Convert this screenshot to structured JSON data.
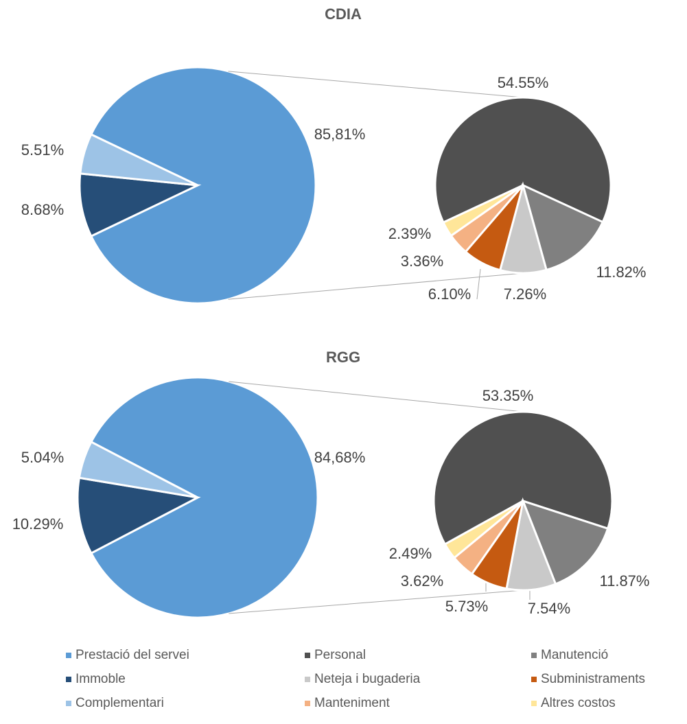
{
  "chart_data": {
    "type": "pie",
    "categories": [
      "Prestació del servei",
      "Immoble",
      "Complementari"
    ],
    "colors": [
      "#5b9bd5",
      "#264e78",
      "#9dc3e6"
    ],
    "sub_categories": [
      "Personal",
      "Manutenció",
      "Neteja i bugaderia",
      "Subministraments",
      "Manteniment",
      "Altres costos"
    ],
    "sub_colors": [
      "#505050",
      "#808080",
      "#c9c9c9",
      "#c55a11",
      "#f4b183",
      "#ffe699"
    ],
    "charts": [
      {
        "title": "CDIA",
        "values": [
          85.81,
          8.68,
          5.51
        ],
        "value_labels": [
          "85,81%",
          "8.68%",
          "5.51%"
        ],
        "sub_values": [
          54.55,
          11.82,
          7.26,
          6.1,
          3.36,
          2.39
        ],
        "sub_value_labels": [
          "54.55%",
          "11.82%",
          "7.26%",
          "6.10%",
          "3.36%",
          "2.39%"
        ]
      },
      {
        "title": "RGG",
        "values": [
          84.68,
          10.29,
          5.04
        ],
        "value_labels": [
          "84,68%",
          "10.29%",
          "5.04%"
        ],
        "sub_values": [
          53.35,
          11.87,
          7.54,
          5.73,
          3.62,
          2.49
        ],
        "sub_value_labels": [
          "53.35%",
          "11.87%",
          "7.54%",
          "5.73%",
          "3.62%",
          "2.49%"
        ]
      }
    ]
  }
}
